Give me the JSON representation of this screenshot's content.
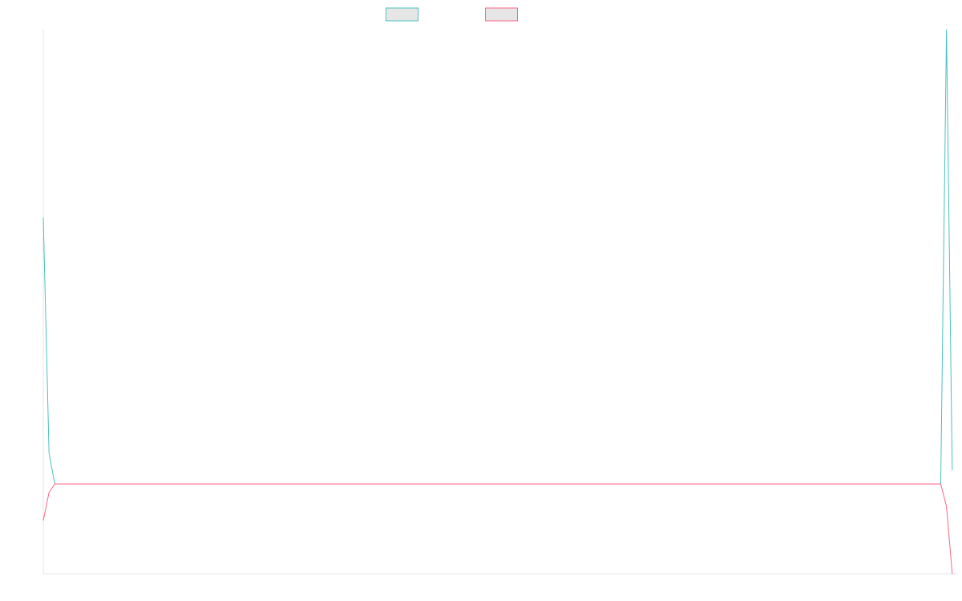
{
  "chart_data": {
    "type": "line",
    "title": "",
    "xlabel": "",
    "ylabel": "",
    "legend_position": "top",
    "grid": false,
    "x_count": 160,
    "ylim": [
      -17,
      80
    ],
    "series": [
      {
        "name": "",
        "color": "#4bc0c0",
        "fill": "#e6e6e6",
        "values": [
          46.5,
          4.5,
          -1,
          -1,
          -1,
          -1,
          -1,
          -1,
          -1,
          -1,
          -1,
          -1,
          -1,
          -1,
          -1,
          -1,
          -1,
          -1,
          -1,
          -1,
          -1,
          -1,
          -1,
          -1,
          -1,
          -1,
          -1,
          -1,
          -1,
          -1,
          -1,
          -1,
          -1,
          -1,
          -1,
          -1,
          -1,
          -1,
          -1,
          -1,
          -1,
          -1,
          -1,
          -1,
          -1,
          -1,
          -1,
          -1,
          -1,
          -1,
          -1,
          -1,
          -1,
          -1,
          -1,
          -1,
          -1,
          -1,
          -1,
          -1,
          -1,
          -1,
          -1,
          -1,
          -1,
          -1,
          -1,
          -1,
          -1,
          -1,
          -1,
          -1,
          -1,
          -1,
          -1,
          -1,
          -1,
          -1,
          -1,
          -1,
          -1,
          -1,
          -1,
          -1,
          -1,
          -1,
          -1,
          -1,
          -1,
          -1,
          -1,
          -1,
          -1,
          -1,
          -1,
          -1,
          -1,
          -1,
          -1,
          -1,
          -1,
          -1,
          -1,
          -1,
          -1,
          -1,
          -1,
          -1,
          -1,
          -1,
          -1,
          -1,
          -1,
          -1,
          -1,
          -1,
          -1,
          -1,
          -1,
          -1,
          -1,
          -1,
          -1,
          -1,
          -1,
          -1,
          -1,
          -1,
          -1,
          -1,
          -1,
          -1,
          -1,
          -1,
          -1,
          -1,
          -1,
          -1,
          -1,
          -1,
          -1,
          -1,
          -1,
          -1,
          -1,
          -1,
          -1,
          -1,
          -1,
          -1,
          -1,
          -1,
          -1,
          -1,
          -1,
          -1,
          -1,
          80,
          1.5
        ]
      },
      {
        "name": "",
        "color": "#ff6384",
        "fill": "#e6e6e6",
        "values": [
          -7.5,
          -2.5,
          -1,
          -1,
          -1,
          -1,
          -1,
          -1,
          -1,
          -1,
          -1,
          -1,
          -1,
          -1,
          -1,
          -1,
          -1,
          -1,
          -1,
          -1,
          -1,
          -1,
          -1,
          -1,
          -1,
          -1,
          -1,
          -1,
          -1,
          -1,
          -1,
          -1,
          -1,
          -1,
          -1,
          -1,
          -1,
          -1,
          -1,
          -1,
          -1,
          -1,
          -1,
          -1,
          -1,
          -1,
          -1,
          -1,
          -1,
          -1,
          -1,
          -1,
          -1,
          -1,
          -1,
          -1,
          -1,
          -1,
          -1,
          -1,
          -1,
          -1,
          -1,
          -1,
          -1,
          -1,
          -1,
          -1,
          -1,
          -1,
          -1,
          -1,
          -1,
          -1,
          -1,
          -1,
          -1,
          -1,
          -1,
          -1,
          -1,
          -1,
          -1,
          -1,
          -1,
          -1,
          -1,
          -1,
          -1,
          -1,
          -1,
          -1,
          -1,
          -1,
          -1,
          -1,
          -1,
          -1,
          -1,
          -1,
          -1,
          -1,
          -1,
          -1,
          -1,
          -1,
          -1,
          -1,
          -1,
          -1,
          -1,
          -1,
          -1,
          -1,
          -1,
          -1,
          -1,
          -1,
          -1,
          -1,
          -1,
          -1,
          -1,
          -1,
          -1,
          -1,
          -1,
          -1,
          -1,
          -1,
          -1,
          -1,
          -1,
          -1,
          -1,
          -1,
          -1,
          -1,
          -1,
          -1,
          -1,
          -1,
          -1,
          -1,
          -1,
          -1,
          -1,
          -1,
          -1,
          -1,
          -1,
          -1,
          -1,
          -1,
          -1,
          -1,
          -1,
          -5,
          -17
        ]
      }
    ]
  }
}
